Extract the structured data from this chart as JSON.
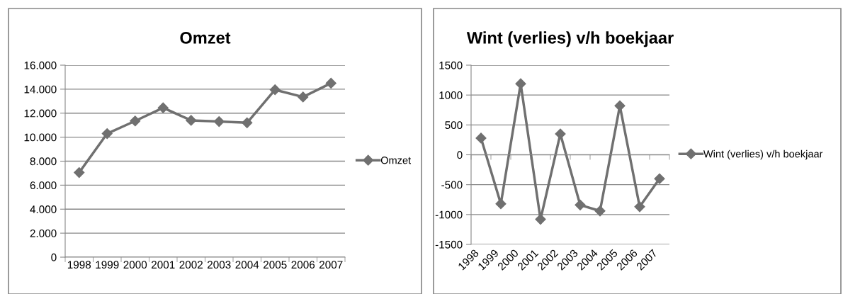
{
  "chart_data": [
    {
      "type": "line",
      "title": "Omzet",
      "categories": [
        "1998",
        "1999",
        "2000",
        "2001",
        "2002",
        "2003",
        "2004",
        "2005",
        "2006",
        "2007"
      ],
      "series": [
        {
          "name": "Omzet",
          "color": "#707070",
          "values": [
            7050,
            10300,
            11350,
            12450,
            11400,
            11300,
            11200,
            13950,
            13350,
            14500
          ]
        }
      ],
      "ylim": [
        0,
        16000
      ],
      "yticks": [
        {
          "value": 0,
          "label": "0"
        },
        {
          "value": 2000,
          "label": "2.000"
        },
        {
          "value": 4000,
          "label": "4.000"
        },
        {
          "value": 6000,
          "label": "6.000"
        },
        {
          "value": 8000,
          "label": "8.000"
        },
        {
          "value": 10000,
          "label": "10.000"
        },
        {
          "value": 12000,
          "label": "12.000"
        },
        {
          "value": 14000,
          "label": "14.000"
        },
        {
          "value": 16000,
          "label": "16.000"
        }
      ],
      "grid": "y",
      "legend": "right",
      "marker": "diamond",
      "line_style": "solid"
    },
    {
      "type": "line",
      "title": "Wint (verlies) v/h boekjaar",
      "categories": [
        "1998",
        "1999",
        "2000",
        "2001",
        "2002",
        "2003",
        "2004",
        "2005",
        "2006",
        "2007"
      ],
      "series": [
        {
          "name": "Wint (verlies) v/h boekjaar",
          "color": "#707070",
          "values": [
            280,
            -820,
            1190,
            -1080,
            350,
            -840,
            -940,
            820,
            -870,
            -400
          ]
        }
      ],
      "ylim": [
        -1500,
        1500
      ],
      "yticks": [
        -1500,
        -1000,
        -500,
        0,
        500,
        1000,
        1500
      ],
      "grid": "y",
      "legend": "right",
      "marker": "diamond",
      "line_style": "solid"
    }
  ]
}
